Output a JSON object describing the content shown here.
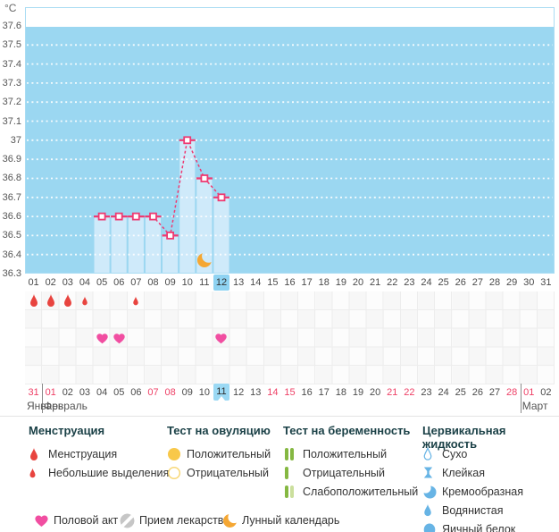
{
  "app": {
    "unit_label": "°C"
  },
  "colors": {
    "plot_bg": "#9bd7f1",
    "plot_border": "#a9dcf3",
    "bar": "#cfeafa",
    "line": "#ee3a72",
    "day_highlight": "#8fd3f2",
    "date_highlight": "#9bd9f4",
    "red_date": "#ee4066",
    "text": "#4a4a4a",
    "legend_header": "#1b4147",
    "legend_text": "#333333",
    "drop": "#e8443f",
    "heart": "#f14ea1",
    "yellow": "#f8c84a",
    "yellow_outline": "#f8d878",
    "green": "#85b842",
    "green_pale": "#cbdf9d",
    "blue_icon": "#67b4e5",
    "pill_gray": "#c6c6c6",
    "moon_orange": "#f5a733"
  },
  "chart_data": {
    "type": "line",
    "title": "",
    "xlabel": "",
    "ylabel": "°C",
    "ylim": [
      36.3,
      37.6
    ],
    "grid": "dotted-horizontal-white",
    "legend_position": "bottom",
    "y_ticks": [
      "37.6",
      "37.5",
      "37.4",
      "37.3",
      "37.2",
      "37.1",
      "37",
      "36.9",
      "36.8",
      "36.7",
      "36.6",
      "36.5",
      "36.4",
      "36.3"
    ],
    "x_days": [
      "01",
      "02",
      "03",
      "04",
      "05",
      "06",
      "07",
      "08",
      "09",
      "10",
      "11",
      "12",
      "13",
      "14",
      "15",
      "16",
      "17",
      "18",
      "19",
      "20",
      "21",
      "22",
      "23",
      "24",
      "25",
      "26",
      "27",
      "28",
      "29",
      "30",
      "31"
    ],
    "current_cycle_day": 12,
    "moon_day": 11,
    "bars_days": [
      5,
      6,
      7,
      8,
      9,
      10,
      11,
      12
    ],
    "series": [
      {
        "name": "basal-temperature",
        "points": [
          [
            5,
            36.6
          ],
          [
            6,
            36.6
          ],
          [
            7,
            36.6
          ],
          [
            8,
            36.6
          ],
          [
            9,
            36.5
          ],
          [
            10,
            37.0
          ],
          [
            11,
            36.8
          ],
          [
            12,
            36.7
          ]
        ]
      }
    ]
  },
  "marker_rows": {
    "row_count": 5,
    "menstruation_row": 0,
    "intercourse_row": 2,
    "menstruation": [
      {
        "day": 1,
        "size": "large"
      },
      {
        "day": 2,
        "size": "large"
      },
      {
        "day": 3,
        "size": "large"
      },
      {
        "day": 4,
        "size": "small"
      },
      {
        "day": 7,
        "size": "small"
      }
    ],
    "intercourse": [
      5,
      6,
      12
    ]
  },
  "calendar": {
    "dates": [
      {
        "d": "31",
        "red": true
      },
      {
        "d": "01",
        "red": true
      },
      {
        "d": "02"
      },
      {
        "d": "03"
      },
      {
        "d": "04"
      },
      {
        "d": "05"
      },
      {
        "d": "06"
      },
      {
        "d": "07",
        "red": true
      },
      {
        "d": "08",
        "red": true
      },
      {
        "d": "09"
      },
      {
        "d": "10"
      },
      {
        "d": "11",
        "today": true
      },
      {
        "d": "12"
      },
      {
        "d": "13"
      },
      {
        "d": "14",
        "red": true
      },
      {
        "d": "15",
        "red": true
      },
      {
        "d": "16"
      },
      {
        "d": "17"
      },
      {
        "d": "18"
      },
      {
        "d": "19"
      },
      {
        "d": "20"
      },
      {
        "d": "21",
        "red": true
      },
      {
        "d": "22",
        "red": true
      },
      {
        "d": "23"
      },
      {
        "d": "24"
      },
      {
        "d": "25"
      },
      {
        "d": "26"
      },
      {
        "d": "27"
      },
      {
        "d": "28",
        "red": true
      },
      {
        "d": "01",
        "red": true
      },
      {
        "d": "02"
      }
    ],
    "month_breaks_after": [
      0,
      28
    ],
    "months": [
      {
        "label": "Январь",
        "index": 0
      },
      {
        "label": "Февраль",
        "index": 1
      },
      {
        "label": "Март",
        "index": 29
      }
    ]
  },
  "legend": {
    "sections": [
      {
        "title": "Менструация",
        "items": [
          {
            "icon": "drop-large",
            "label": "Менструация"
          },
          {
            "icon": "drop-small",
            "label": "Небольшие выделения"
          }
        ]
      },
      {
        "title": "Тест на овуляцию",
        "items": [
          {
            "icon": "circle-yellow-filled",
            "label": "Положительный"
          },
          {
            "icon": "circle-yellow-outline",
            "label": "Отрицательный"
          }
        ]
      },
      {
        "title": "Тест на беременность",
        "items": [
          {
            "icon": "bars-two-green",
            "label": "Положительный"
          },
          {
            "icon": "bar-one-green",
            "label": "Отрицательный"
          },
          {
            "icon": "bars-green-pale",
            "label": "Слабоположительный"
          }
        ]
      },
      {
        "title": "Цервикальная жидкость",
        "items": [
          {
            "icon": "drop-outline-blue",
            "label": "Сухо"
          },
          {
            "icon": "ibeam-blue",
            "label": "Клейкая"
          },
          {
            "icon": "crescent-blue",
            "label": "Кремообразная"
          },
          {
            "icon": "drop-blue",
            "label": "Водянистая"
          },
          {
            "icon": "circle-blue",
            "label": "Яичный белок"
          }
        ]
      }
    ],
    "bottom_items": [
      {
        "icon": "heart",
        "label": "Половой акт"
      },
      {
        "icon": "pill",
        "label": "Прием лекарств"
      },
      {
        "icon": "moon",
        "label": "Лунный календарь"
      }
    ]
  }
}
